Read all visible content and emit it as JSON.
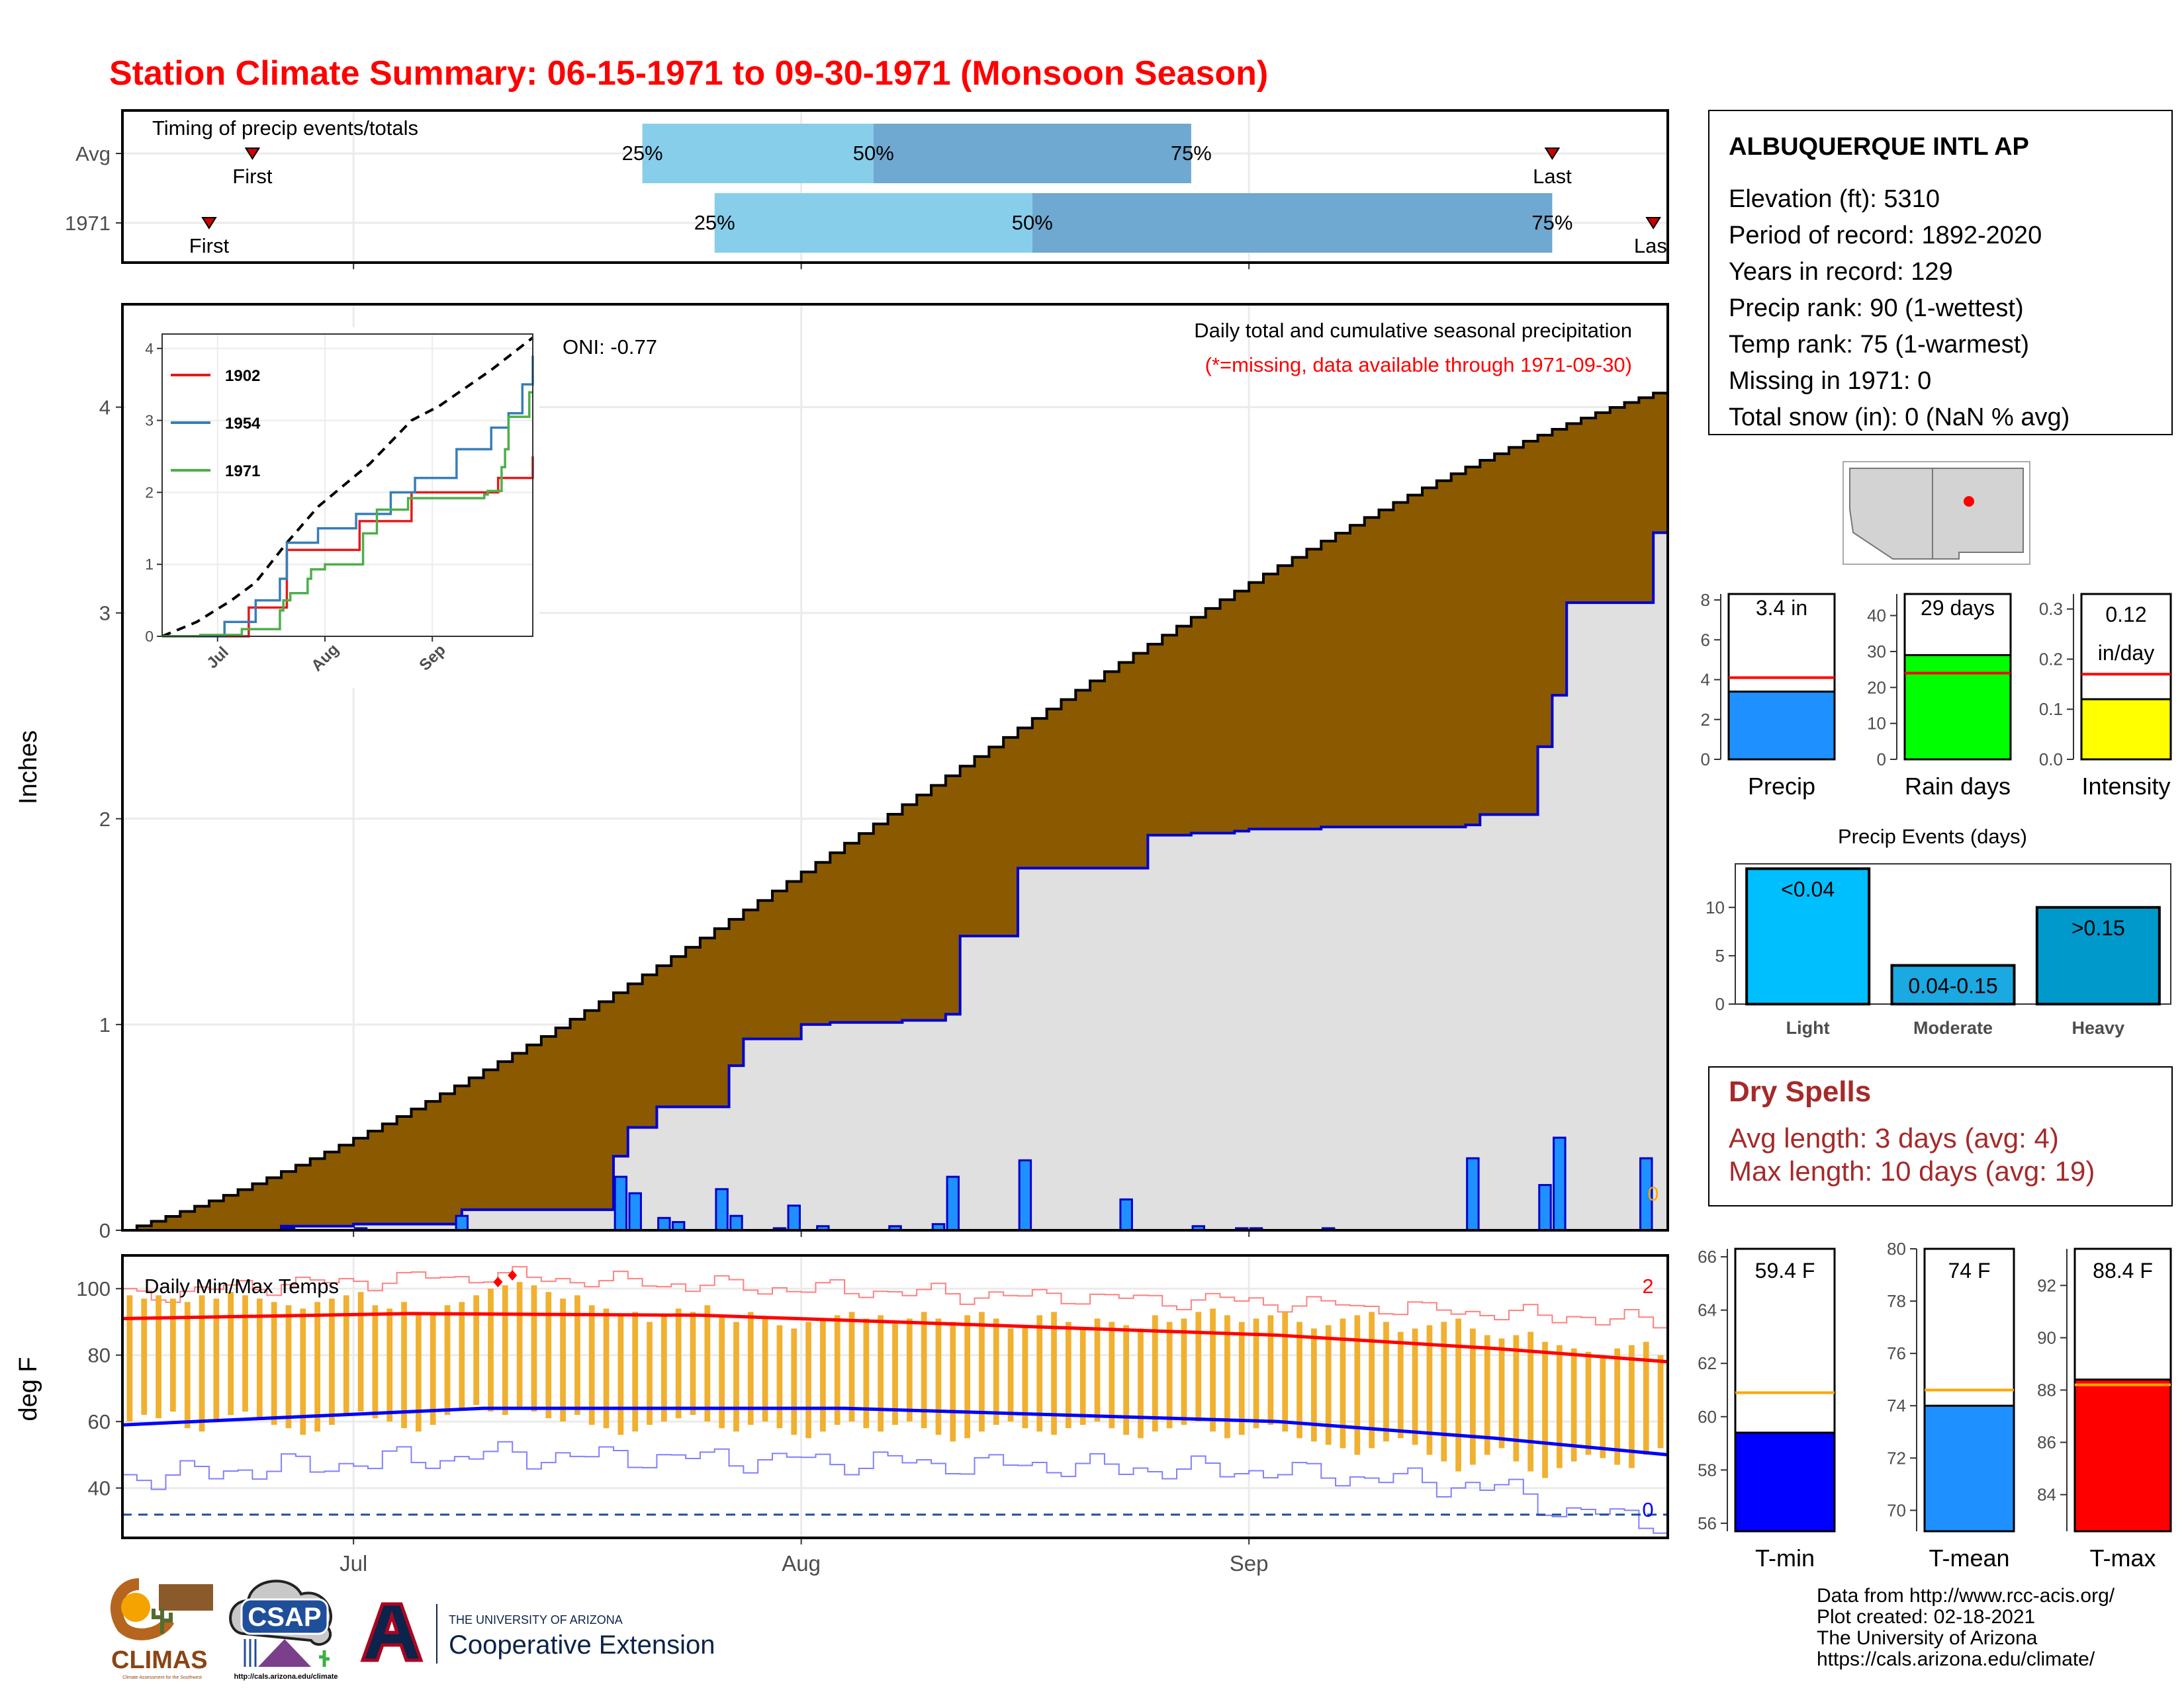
{
  "title": "Station Climate Summary: 06-15-1971 to 09-30-1971 (Monsoon Season)",
  "colors": {
    "title": "#ff0000",
    "cum_fill": "#8b5a00",
    "avg_fill": "#e0e0e0",
    "daily_bar": "#1e90ff",
    "temp_bar": "#f0b030",
    "dry_spell_text": "#a52a2a"
  },
  "station": {
    "name": "ALBUQUERQUE INTL AP",
    "lines": [
      "Elevation (ft): 5310",
      "Period of record: 1892-2020",
      "Years in record: 129",
      "Precip rank: 90 (1-wettest)",
      "Temp rank: 75 (1-warmest)",
      "Missing in 1971: 0",
      "Total snow (in): 0 (NaN % avg)"
    ]
  },
  "dry_spells": {
    "title": "Dry Spells",
    "avg": "Avg length: 3 days (avg: 4)",
    "max": "Max length: 10 days (avg: 19)"
  },
  "footer": {
    "lines": [
      "Data from http://www.rcc-acis.org/",
      "Plot created: 02-18-2021",
      "The University of Arizona",
      "https://cals.arizona.edu/climate/"
    ],
    "logos": {
      "climas": "CLIMAS",
      "climas_sub": "Climate Assessment for the Southwest",
      "csap": "CSAP",
      "csap_url": "http://cals.arizona.edu/climate",
      "ua_top": "THE UNIVERSITY OF ARIZONA",
      "ua_bottom": "Cooperative Extension"
    }
  },
  "chart_data": [
    {
      "id": "timing",
      "type": "bar",
      "title": "Timing of precip events/totals",
      "categories": [
        "Avg",
        "1971"
      ],
      "x_range_days": [
        0,
        107
      ],
      "x_ticks": [
        {
          "label": "Jul",
          "day": 16
        },
        {
          "label": "Aug",
          "day": 47
        },
        {
          "label": "Sep",
          "day": 78
        }
      ],
      "rows": [
        {
          "label": "Avg",
          "first": 9,
          "p25": 36,
          "p50": 52,
          "p75": 74,
          "last": 99
        },
        {
          "label": "1971",
          "first": 6,
          "p25": 41,
          "p50": 63,
          "p75": 99,
          "last": 106
        }
      ],
      "marker_labels": {
        "first": "First",
        "last": "Last",
        "p25": "25%",
        "p50": "50%",
        "p75": "75%"
      }
    },
    {
      "id": "precip",
      "type": "area",
      "title": "Daily total and cumulative seasonal precipitation",
      "subtitle": "(*=missing, data available through 1971-09-30)",
      "annotation": "ONI: -0.77",
      "ylabel": "Inches",
      "ylim": [
        0,
        4.5
      ],
      "y_ticks": [
        0,
        1,
        2,
        3,
        4
      ],
      "x_range_days": [
        0,
        107
      ],
      "x_ticks": [
        {
          "label": "Jul",
          "day": 16
        },
        {
          "label": "Aug",
          "day": 47
        },
        {
          "label": "Sep",
          "day": 78
        }
      ],
      "avg_cum_final": 4.09,
      "obs_cum_final": 3.39,
      "zero_marker": "0",
      "obs_cum_steps": [
        [
          0,
          0
        ],
        [
          11,
          0.02
        ],
        [
          16,
          0.03
        ],
        [
          23,
          0.03
        ],
        [
          23.5,
          0.1
        ],
        [
          33,
          0.1
        ],
        [
          34,
          0.36
        ],
        [
          35,
          0.5
        ],
        [
          36,
          0.5
        ],
        [
          37,
          0.6
        ],
        [
          40,
          0.6
        ],
        [
          41,
          0.6
        ],
        [
          42,
          0.8
        ],
        [
          43,
          0.93
        ],
        [
          47,
          1.0
        ],
        [
          48,
          1.0
        ],
        [
          49,
          1.01
        ],
        [
          54,
          1.02
        ],
        [
          57,
          1.05
        ],
        [
          58,
          1.43
        ],
        [
          62,
          1.76
        ],
        [
          70,
          1.76
        ],
        [
          71,
          1.92
        ],
        [
          73,
          1.92
        ],
        [
          74,
          1.93
        ],
        [
          77,
          1.94
        ],
        [
          78,
          1.95
        ],
        [
          83,
          1.96
        ],
        [
          93,
          1.97
        ],
        [
          94,
          2.02
        ],
        [
          97,
          2.02
        ],
        [
          98,
          2.35
        ],
        [
          99,
          2.6
        ],
        [
          100,
          3.05
        ],
        [
          105,
          3.05
        ],
        [
          106,
          3.39
        ],
        [
          107,
          3.39
        ]
      ],
      "daily_bars": [
        {
          "day": 11.5,
          "value": 0.01
        },
        {
          "day": 16.5,
          "value": 0.01
        },
        {
          "day": 23.5,
          "value": 0.07
        },
        {
          "day": 34.5,
          "value": 0.26
        },
        {
          "day": 35.5,
          "value": 0.18
        },
        {
          "day": 37.5,
          "value": 0.06
        },
        {
          "day": 38.5,
          "value": 0.04
        },
        {
          "day": 41.5,
          "value": 0.2
        },
        {
          "day": 42.5,
          "value": 0.07
        },
        {
          "day": 45.5,
          "value": 0.01
        },
        {
          "day": 46.5,
          "value": 0.12
        },
        {
          "day": 48.5,
          "value": 0.02
        },
        {
          "day": 53.5,
          "value": 0.02
        },
        {
          "day": 56.5,
          "value": 0.03
        },
        {
          "day": 57.5,
          "value": 0.26
        },
        {
          "day": 62.5,
          "value": 0.34
        },
        {
          "day": 69.5,
          "value": 0.15
        },
        {
          "day": 74.5,
          "value": 0.02
        },
        {
          "day": 77.5,
          "value": 0.01
        },
        {
          "day": 78.5,
          "value": 0.01
        },
        {
          "day": 83.5,
          "value": 0.01
        },
        {
          "day": 93.5,
          "value": 0.35
        },
        {
          "day": 98.5,
          "value": 0.22
        },
        {
          "day": 99.5,
          "value": 0.45
        },
        {
          "day": 105.5,
          "value": 0.35
        }
      ]
    },
    {
      "id": "inset",
      "type": "line",
      "xlabel": "",
      "ylim": [
        0,
        4.2
      ],
      "y_ticks": [
        0,
        1,
        2,
        3,
        4
      ],
      "x_range_days": [
        0,
        107
      ],
      "x_ticks": [
        {
          "label": "Jul",
          "day": 16
        },
        {
          "label": "Aug",
          "day": 47
        },
        {
          "label": "Sep",
          "day": 78
        }
      ],
      "avg_line": [
        [
          0,
          0
        ],
        [
          10,
          0.2
        ],
        [
          20,
          0.5
        ],
        [
          27,
          0.75
        ],
        [
          36,
          1.3
        ],
        [
          45,
          1.8
        ],
        [
          60,
          2.4
        ],
        [
          72,
          3.0
        ],
        [
          80,
          3.2
        ],
        [
          95,
          3.7
        ],
        [
          107,
          4.15
        ]
      ],
      "series": [
        {
          "name": "1902",
          "color": "#e41a1c",
          "steps": [
            [
              0,
              0
            ],
            [
              10,
              0
            ],
            [
              25,
              0.4
            ],
            [
              36,
              1.2
            ],
            [
              45,
              1.2
            ],
            [
              57,
              1.6
            ],
            [
              65,
              1.6
            ],
            [
              72,
              2.0
            ],
            [
              95,
              2.0
            ],
            [
              97,
              2.2
            ],
            [
              105,
              2.2
            ],
            [
              107,
              2.5
            ]
          ]
        },
        {
          "name": "1954",
          "color": "#377eb8",
          "steps": [
            [
              0,
              0
            ],
            [
              18,
              0.2
            ],
            [
              27,
              0.5
            ],
            [
              34,
              0.8
            ],
            [
              36,
              1.3
            ],
            [
              45,
              1.5
            ],
            [
              56,
              1.7
            ],
            [
              66,
              2.0
            ],
            [
              73,
              2.2
            ],
            [
              85,
              2.6
            ],
            [
              95,
              2.9
            ],
            [
              100,
              3.1
            ],
            [
              104,
              3.5
            ],
            [
              107,
              3.9
            ]
          ]
        },
        {
          "name": "1971",
          "color": "#4daf4a",
          "steps": [
            [
              0,
              0
            ],
            [
              11,
              0.02
            ],
            [
              23,
              0.1
            ],
            [
              34,
              0.36
            ],
            [
              35,
              0.5
            ],
            [
              37,
              0.6
            ],
            [
              42,
              0.8
            ],
            [
              43,
              0.93
            ],
            [
              47,
              1.0
            ],
            [
              58,
              1.43
            ],
            [
              62,
              1.76
            ],
            [
              71,
              1.92
            ],
            [
              93,
              1.97
            ],
            [
              94,
              2.02
            ],
            [
              98,
              2.35
            ],
            [
              99,
              2.6
            ],
            [
              100,
              3.05
            ],
            [
              106,
              3.39
            ],
            [
              107,
              3.39
            ]
          ]
        }
      ]
    },
    {
      "id": "temps",
      "type": "bar",
      "title": "Daily Min/Max Temps",
      "ylabel": "deg F",
      "ylim": [
        25,
        110
      ],
      "y_ticks": [
        40,
        60,
        80,
        100
      ],
      "freeze_line": 32,
      "x_range_days": [
        0,
        107
      ],
      "x_ticks": [
        {
          "label": "Jul",
          "day": 16
        },
        {
          "label": "Aug",
          "day": 47
        },
        {
          "label": "Sep",
          "day": 78
        }
      ],
      "right_markers": {
        "upper": "2",
        "lower": "0"
      },
      "avg_max": [
        [
          0,
          91
        ],
        [
          20,
          92.5
        ],
        [
          40,
          92
        ],
        [
          60,
          89
        ],
        [
          80,
          86
        ],
        [
          95,
          82
        ],
        [
          107,
          78
        ]
      ],
      "avg_min": [
        [
          0,
          59
        ],
        [
          10,
          61
        ],
        [
          25,
          64
        ],
        [
          50,
          64
        ],
        [
          80,
          60
        ],
        [
          95,
          55
        ],
        [
          107,
          50
        ]
      ],
      "record_max": [
        [
          0,
          98
        ],
        [
          10,
          101
        ],
        [
          25,
          104
        ],
        [
          40,
          101
        ],
        [
          60,
          98
        ],
        [
          80,
          96
        ],
        [
          107,
          90
        ]
      ],
      "record_min": [
        [
          0,
          43
        ],
        [
          10,
          46
        ],
        [
          25,
          50
        ],
        [
          50,
          48
        ],
        [
          80,
          45
        ],
        [
          95,
          40
        ],
        [
          100,
          33
        ],
        [
          107,
          30
        ]
      ],
      "record_hits": [
        [
          26,
          102
        ],
        [
          27,
          104
        ]
      ],
      "tmax": [
        98,
        97,
        98,
        97,
        96,
        98,
        97,
        99,
        98,
        97,
        96,
        95,
        94,
        96,
        97,
        98,
        99,
        95,
        94,
        96,
        93,
        92,
        95,
        96,
        98,
        100,
        101,
        102,
        101,
        99,
        97,
        98,
        95,
        94,
        92,
        93,
        90,
        92,
        94,
        93,
        95,
        92,
        90,
        93,
        91,
        89,
        88,
        90,
        91,
        92,
        93,
        91,
        92,
        90,
        91,
        93,
        91,
        90,
        92,
        93,
        91,
        88,
        89,
        92,
        93,
        90,
        88,
        91,
        90,
        89,
        88,
        92,
        90,
        91,
        93,
        94,
        92,
        90,
        91,
        92,
        93,
        90,
        88,
        89,
        91,
        92,
        93,
        90,
        87,
        88,
        89,
        90,
        91,
        88,
        86,
        85,
        86,
        87,
        84,
        83,
        82,
        81,
        80,
        82,
        83,
        84,
        80
      ],
      "tmin": [
        60,
        62,
        61,
        63,
        58,
        57,
        60,
        62,
        63,
        61,
        59,
        58,
        56,
        57,
        59,
        62,
        63,
        61,
        60,
        58,
        57,
        59,
        62,
        64,
        65,
        63,
        62,
        64,
        63,
        61,
        60,
        62,
        59,
        58,
        56,
        57,
        59,
        60,
        61,
        62,
        60,
        58,
        57,
        59,
        60,
        58,
        56,
        55,
        57,
        59,
        60,
        58,
        57,
        59,
        60,
        58,
        56,
        54,
        55,
        57,
        59,
        60,
        58,
        57,
        56,
        58,
        59,
        60,
        58,
        56,
        55,
        57,
        58,
        59,
        60,
        57,
        55,
        56,
        58,
        59,
        57,
        55,
        54,
        53,
        52,
        50,
        52,
        54,
        55,
        53,
        50,
        48,
        45,
        47,
        50,
        52,
        48,
        45,
        43,
        46,
        48,
        50,
        49,
        47,
        46,
        50,
        52
      ]
    },
    {
      "id": "summary_precip",
      "type": "bar",
      "bars": [
        {
          "label": "Precip",
          "value": 3.4,
          "text": "3.4 in",
          "avg": 4.1,
          "ylim": [
            0,
            8.3
          ],
          "ticks": [
            0,
            2,
            4,
            6,
            8
          ],
          "color": "#1e90ff"
        },
        {
          "label": "Rain days",
          "value": 29,
          "text": "29 days",
          "avg": 24,
          "ylim": [
            0,
            46
          ],
          "ticks": [
            0,
            10,
            20,
            30,
            40
          ],
          "color": "#00ff00"
        },
        {
          "label": "Intensity",
          "value": 0.12,
          "text": "0.12",
          "text2": "in/day",
          "avg": 0.17,
          "ylim": [
            0,
            0.33
          ],
          "ticks": [
            0.0,
            0.1,
            0.2,
            0.3
          ],
          "tick_decimals": 1,
          "color": "#ffff00"
        }
      ]
    },
    {
      "id": "precip_events",
      "type": "bar",
      "title": "Precip Events (days)",
      "ylim": [
        0,
        14.5
      ],
      "ticks": [
        0,
        5,
        10
      ],
      "categories": [
        "Light",
        "Moderate",
        "Heavy"
      ],
      "values": [
        14,
        4,
        10
      ],
      "labels": [
        "<0.04",
        "0.04-0.15",
        ">0.15"
      ],
      "colors": [
        "#00bfff",
        "#1ca8e0",
        "#0099cc"
      ]
    },
    {
      "id": "summary_temp",
      "type": "bar",
      "bars": [
        {
          "label": "T-min",
          "value": 59.4,
          "text": "59.4 F",
          "avg": 60.9,
          "ylim": [
            55.7,
            66.3
          ],
          "ticks": [
            56,
            58,
            60,
            62,
            64,
            66
          ],
          "color": "#0000ff"
        },
        {
          "label": "T-mean",
          "value": 74.0,
          "text": "74 F",
          "avg": 74.6,
          "ylim": [
            69.2,
            80.0
          ],
          "ticks": [
            70,
            72,
            74,
            76,
            78,
            80
          ],
          "color": "#1e90ff"
        },
        {
          "label": "T-max",
          "value": 88.4,
          "text": "88.4 F",
          "avg": 88.2,
          "ylim": [
            82.6,
            93.4
          ],
          "ticks": [
            84,
            86,
            88,
            90,
            92
          ],
          "color": "#ff0000"
        }
      ]
    }
  ]
}
